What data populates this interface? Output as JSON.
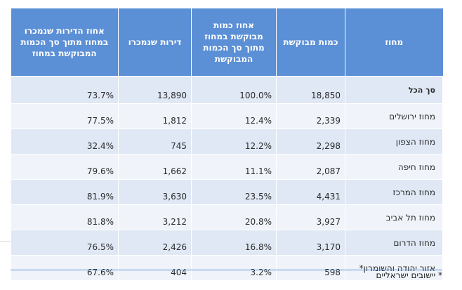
{
  "table": {
    "headers": {
      "region": "מחוז",
      "requested_quantity": "כמות מבוקשת",
      "requested_pct": "אחוז כמות מבוקשת במחוז מתוך סך הכמות המבוקשת",
      "apartments_sold": "דירות שנמכרו",
      "sold_pct": "אחוז הדירות שנמכרו במחוז מתוך סך הכמות המבוקשת במחוז"
    },
    "rows": [
      {
        "region": "סך הכל",
        "requested": "18,850",
        "requested_pct": "100.0%",
        "sold": "13,890",
        "sold_pct": "73.7%"
      },
      {
        "region": "מחוז ירושלים",
        "requested": "2,339",
        "requested_pct": "12.4%",
        "sold": "1,812",
        "sold_pct": "77.5%"
      },
      {
        "region": "מחוז הצפון",
        "requested": "2,298",
        "requested_pct": "12.2%",
        "sold": "745",
        "sold_pct": "32.4%"
      },
      {
        "region": "מחוז חיפה",
        "requested": "2,087",
        "requested_pct": "11.1%",
        "sold": "1,662",
        "sold_pct": "79.6%"
      },
      {
        "region": "מחוז המרכז",
        "requested": "4,431",
        "requested_pct": "23.5%",
        "sold": "3,630",
        "sold_pct": "81.9%"
      },
      {
        "region": "מחוז תל אביב",
        "requested": "3,927",
        "requested_pct": "20.8%",
        "sold": "3,212",
        "sold_pct": "81.8%"
      },
      {
        "region": "מחוז הדרום",
        "requested": "3,170",
        "requested_pct": "16.8%",
        "sold": "2,426",
        "sold_pct": "76.5%"
      },
      {
        "region": "אזור יהודה והשומרון*",
        "requested": "598",
        "requested_pct": "3.2%",
        "sold": "404",
        "sold_pct": "67.6%"
      }
    ]
  },
  "footnote": "* יישובים ישראליים",
  "colors": {
    "header_bg": "#5b8fd6",
    "row_odd": "#dfe8f4",
    "row_even": "#f0f4fa"
  }
}
